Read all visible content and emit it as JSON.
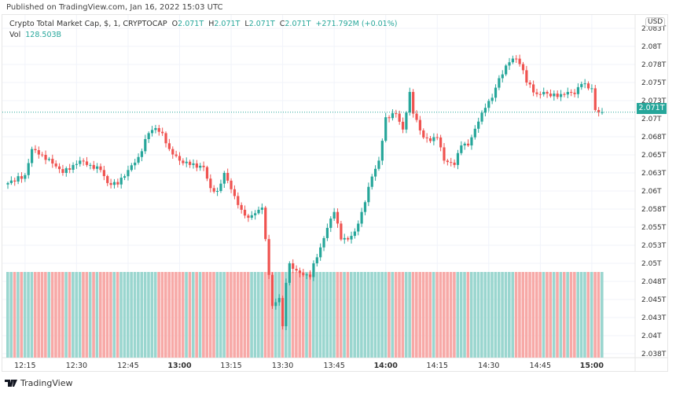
{
  "header": {
    "published": "Published on TradingView.com, Jan 16, 2022 15:03 UTC"
  },
  "legend": {
    "symbol": "Crypto Total Market Cap, $, 1, CRYPTOCAP",
    "o_label": "O",
    "o": "2.071T",
    "h_label": "H",
    "h": "2.071T",
    "l_label": "L",
    "l": "2.071T",
    "c_label": "C",
    "c": "2.071T",
    "change": "+271.792M (+0.01%)",
    "vol_label": "Vol",
    "vol": "128.503B"
  },
  "currency": "USD",
  "current_price_label": "2.071T",
  "footer": {
    "brand": "TradingView"
  },
  "colors": {
    "up": "#26a69a",
    "down": "#ef5350",
    "vol_up": "#9ad6cf",
    "vol_down": "#f7a9a7"
  },
  "chart_data": {
    "type": "candlestick",
    "title": "Crypto Total Market Cap",
    "interval_minutes": 1,
    "start_time": "12:10",
    "current_price": 2.0714,
    "ylim": [
      2.0375,
      2.0835
    ],
    "y_ticks": [
      {
        "v": 2.083,
        "label": "2.083T"
      },
      {
        "v": 2.0805,
        "label": "2.08T"
      },
      {
        "v": 2.078,
        "label": "2.078T"
      },
      {
        "v": 2.0755,
        "label": "2.075T"
      },
      {
        "v": 2.073,
        "label": "2.073T"
      },
      {
        "v": 2.0705,
        "label": "2.07T"
      },
      {
        "v": 2.068,
        "label": "2.068T"
      },
      {
        "v": 2.0655,
        "label": "2.065T"
      },
      {
        "v": 2.063,
        "label": "2.063T"
      },
      {
        "v": 2.0605,
        "label": "2.06T"
      },
      {
        "v": 2.058,
        "label": "2.058T"
      },
      {
        "v": 2.0555,
        "label": "2.055T"
      },
      {
        "v": 2.053,
        "label": "2.053T"
      },
      {
        "v": 2.0505,
        "label": "2.05T"
      },
      {
        "v": 2.048,
        "label": "2.048T"
      },
      {
        "v": 2.0455,
        "label": "2.045T"
      },
      {
        "v": 2.043,
        "label": "2.043T"
      },
      {
        "v": 2.0405,
        "label": "2.04T"
      },
      {
        "v": 2.038,
        "label": "2.038T"
      }
    ],
    "x_ticks": [
      {
        "m": 5,
        "label": "12:15"
      },
      {
        "m": 20,
        "label": "12:30"
      },
      {
        "m": 35,
        "label": "12:45"
      },
      {
        "m": 50,
        "label": "13:00",
        "bold": true
      },
      {
        "m": 65,
        "label": "13:15"
      },
      {
        "m": 80,
        "label": "13:30"
      },
      {
        "m": 95,
        "label": "13:45"
      },
      {
        "m": 110,
        "label": "14:00",
        "bold": true
      },
      {
        "m": 125,
        "label": "14:15"
      },
      {
        "m": 140,
        "label": "14:30"
      },
      {
        "m": 155,
        "label": "14:45"
      },
      {
        "m": 170,
        "label": "15:00",
        "bold": true
      }
    ],
    "close_keypoints": [
      [
        0,
        2.0616
      ],
      [
        5,
        2.0627
      ],
      [
        7,
        2.0663
      ],
      [
        10,
        2.0655
      ],
      [
        13,
        2.0643
      ],
      [
        16,
        2.063
      ],
      [
        19,
        2.0641
      ],
      [
        21,
        2.0647
      ],
      [
        24,
        2.0641
      ],
      [
        27,
        2.0634
      ],
      [
        29,
        2.0616
      ],
      [
        32,
        2.0614
      ],
      [
        35,
        2.0634
      ],
      [
        38,
        2.0652
      ],
      [
        41,
        2.0685
      ],
      [
        43,
        2.0692
      ],
      [
        45,
        2.0685
      ],
      [
        47,
        2.0663
      ],
      [
        50,
        2.0647
      ],
      [
        53,
        2.0641
      ],
      [
        57,
        2.0638
      ],
      [
        59,
        2.0609
      ],
      [
        61,
        2.0605
      ],
      [
        63,
        2.063
      ],
      [
        66,
        2.0598
      ],
      [
        68,
        2.0579
      ],
      [
        70,
        2.0568
      ],
      [
        73,
        2.0579
      ],
      [
        74,
        2.0582
      ],
      [
        76,
        2.0489
      ],
      [
        77,
        2.0446
      ],
      [
        79,
        2.0457
      ],
      [
        80,
        2.0418
      ],
      [
        81,
        2.0478
      ],
      [
        82,
        2.0505
      ],
      [
        84,
        2.0495
      ],
      [
        86,
        2.0489
      ],
      [
        88,
        2.0486
      ],
      [
        89,
        2.0505
      ],
      [
        91,
        2.0527
      ],
      [
        93,
        2.0554
      ],
      [
        95,
        2.0576
      ],
      [
        97,
        2.0538
      ],
      [
        99,
        2.0538
      ],
      [
        101,
        2.0549
      ],
      [
        103,
        2.0576
      ],
      [
        106,
        2.0625
      ],
      [
        108,
        2.0647
      ],
      [
        110,
        2.0707
      ],
      [
        113,
        2.0712
      ],
      [
        115,
        2.069
      ],
      [
        117,
        2.0742
      ],
      [
        118,
        2.0712
      ],
      [
        121,
        2.0679
      ],
      [
        123,
        2.0674
      ],
      [
        125,
        2.0679
      ],
      [
        127,
        2.0647
      ],
      [
        130,
        2.0641
      ],
      [
        132,
        2.0668
      ],
      [
        134,
        2.0668
      ],
      [
        137,
        2.0701
      ],
      [
        139,
        2.072
      ],
      [
        141,
        2.0734
      ],
      [
        143,
        2.0761
      ],
      [
        146,
        2.0783
      ],
      [
        148,
        2.0788
      ],
      [
        150,
        2.0772
      ],
      [
        151,
        2.0755
      ],
      [
        154,
        2.0739
      ],
      [
        156,
        2.0742
      ],
      [
        158,
        2.0736
      ],
      [
        161,
        2.0739
      ],
      [
        163,
        2.0742
      ],
      [
        165,
        2.0739
      ],
      [
        167,
        2.0753
      ],
      [
        170,
        2.0747
      ],
      [
        171,
        2.0717
      ],
      [
        172,
        2.0714
      ],
      [
        173,
        2.0714
      ]
    ]
  }
}
